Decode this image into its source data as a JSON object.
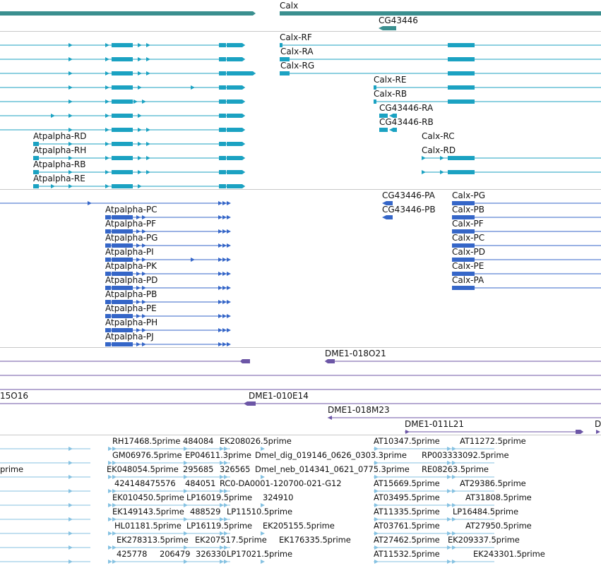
{
  "colors": {
    "gene": "#3a8f8f",
    "transcript": "#1ba2c2",
    "transcript_alt": "#3566c8",
    "clone": "#6c56a6",
    "est": "#86c2e2",
    "separator": "#c8c8c8"
  },
  "tracks": {
    "genes": {
      "items": [
        {
          "label": "Calx"
        },
        {
          "label": "CG43446"
        }
      ]
    },
    "transcripts": {
      "items": [
        {
          "label": ""
        },
        {
          "label": ""
        },
        {
          "label": ""
        },
        {
          "label": ""
        },
        {
          "label": ""
        },
        {
          "label": ""
        },
        {
          "label": ""
        },
        {
          "label": "Atpalpha-RD"
        },
        {
          "label": "Atpalpha-RH"
        },
        {
          "label": "Atpalpha-RB"
        },
        {
          "label": "Atpalpha-RE"
        },
        {
          "label": "Calx-RF"
        },
        {
          "label": "Calx-RA"
        },
        {
          "label": "Calx-RG"
        },
        {
          "label": "Calx-RE"
        },
        {
          "label": "Calx-RB"
        },
        {
          "label": "CG43446-RA"
        },
        {
          "label": "CG43446-RB"
        },
        {
          "label": "Calx-RC"
        },
        {
          "label": "Calx-RD"
        }
      ]
    },
    "proteins": {
      "items": [
        {
          "label": ""
        },
        {
          "label": "Atpalpha-PC"
        },
        {
          "label": "Atpalpha-PF"
        },
        {
          "label": "Atpalpha-PG"
        },
        {
          "label": "Atpalpha-PI"
        },
        {
          "label": "Atpalpha-PK"
        },
        {
          "label": "Atpalpha-PD"
        },
        {
          "label": "Atpalpha-PB"
        },
        {
          "label": "Atpalpha-PE"
        },
        {
          "label": "Atpalpha-PH"
        },
        {
          "label": "Atpalpha-PJ"
        },
        {
          "label": "CG43446-PA"
        },
        {
          "label": "CG43446-PB"
        },
        {
          "label": "Calx-PG"
        },
        {
          "label": "Calx-PB"
        },
        {
          "label": "Calx-PF"
        },
        {
          "label": "Calx-PC"
        },
        {
          "label": "Calx-PD"
        },
        {
          "label": "Calx-PE"
        },
        {
          "label": "Calx-PA"
        }
      ]
    },
    "clones": {
      "items": [
        {
          "label": "DME1-018O21"
        },
        {
          "label": ""
        },
        {
          "label": "15O16"
        },
        {
          "label": "DME1-010E14"
        },
        {
          "label": "DME1-018M23"
        },
        {
          "label": "DME1-011L21"
        },
        {
          "label": "D"
        }
      ]
    },
    "ests": {
      "items": [
        {
          "label": "RH17468.5prime"
        },
        {
          "label": "484084"
        },
        {
          "label": "EK208026.5prime"
        },
        {
          "label": "AT10347.5prime"
        },
        {
          "label": "AT11272.5prime"
        },
        {
          "label": "GM06976.5prime"
        },
        {
          "label": "EP04611.3prime"
        },
        {
          "label": "Dmel_dig_019146_0626_0303.3prime"
        },
        {
          "label": "RP003333092.5prime"
        },
        {
          "label": "prime"
        },
        {
          "label": "EK048054.5prime"
        },
        {
          "label": "295685"
        },
        {
          "label": "326565"
        },
        {
          "label": "Dmel_neb_014341_0621_0775.3prime"
        },
        {
          "label": "RE08263.5prime"
        },
        {
          "label": "424148475576"
        },
        {
          "label": "484051"
        },
        {
          "label": "RC0-DA0001-120700-021-G12"
        },
        {
          "label": "AT15669.5prime"
        },
        {
          "label": "AT29386.5prime"
        },
        {
          "label": "EK010450.5prime"
        },
        {
          "label": "LP16019.5prime"
        },
        {
          "label": "324910"
        },
        {
          "label": "AT03495.5prime"
        },
        {
          "label": "AT31808.5prime"
        },
        {
          "label": "EK149143.5prime"
        },
        {
          "label": "488529"
        },
        {
          "label": "LP11510.5prime"
        },
        {
          "label": "AT11335.5prime"
        },
        {
          "label": "LP16484.5prime"
        },
        {
          "label": "HL01181.5prime"
        },
        {
          "label": "LP16119.5prime"
        },
        {
          "label": "EK205155.5prime"
        },
        {
          "label": "AT03761.5prime"
        },
        {
          "label": "AT27950.5prime"
        },
        {
          "label": "EK278313.5prime"
        },
        {
          "label": "EK207517.5prime"
        },
        {
          "label": "EK176335.5prime"
        },
        {
          "label": "AT27462.5prime"
        },
        {
          "label": "EK209337.5prime"
        },
        {
          "label": "425778"
        },
        {
          "label": "206479"
        },
        {
          "label": "326330"
        },
        {
          "label": "LP17021.5prime"
        },
        {
          "label": "AT11532.5prime"
        },
        {
          "label": "EK243301.5prime"
        }
      ]
    }
  }
}
